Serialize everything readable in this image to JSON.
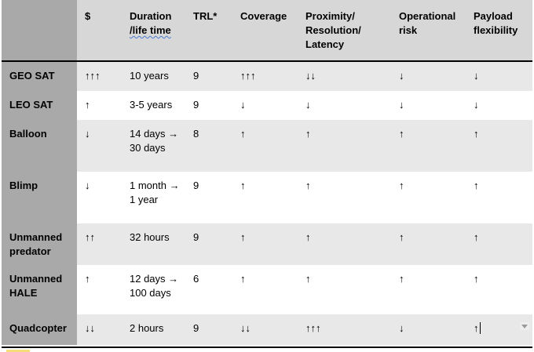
{
  "headers": [
    "",
    "$",
    "Duration /life time",
    "TRL*",
    "Coverage",
    "Proximity/ Resolution/ Latency",
    "Operational risk",
    "Payload flexibility"
  ],
  "header_lines": {
    "duration_1": "Duration",
    "duration_2": "/life time",
    "proximity_1": "Proximity/",
    "proximity_2": "Resolution/",
    "proximity_3": "Latency",
    "operational_1": "Operational",
    "operational_2": "risk",
    "payload_1": "Payload",
    "payload_2": "flexibility"
  },
  "rows": [
    {
      "name": "GEO SAT",
      "cost": "↑↑↑",
      "duration": "10 years",
      "duration2": "",
      "trl": "9",
      "coverage": "↑↑↑",
      "proximity": "↓↓",
      "risk": "↓",
      "payload": "↓"
    },
    {
      "name": "LEO SAT",
      "cost": "↑",
      "duration": "3-5 years",
      "duration2": "",
      "trl": "9",
      "coverage": "↓",
      "proximity": "↓",
      "risk": "↓",
      "payload": "↓"
    },
    {
      "name": "Balloon",
      "cost": "↓",
      "duration": "14 days →",
      "duration2": "30 days",
      "trl": "8",
      "coverage": "↑",
      "proximity": "↑",
      "risk": "↑",
      "payload": "↑"
    },
    {
      "name": "Blimp",
      "cost": "↓",
      "duration": "1 month →",
      "duration2": "1 year",
      "trl": "9",
      "coverage": "↑",
      "proximity": "↑",
      "risk": "↑",
      "payload": "↑"
    },
    {
      "name": "Unmanned",
      "name2": "predator",
      "cost": "↑↑",
      "duration": "32 hours",
      "duration2": "",
      "trl": "9",
      "coverage": "↑",
      "proximity": "↑",
      "risk": "↑",
      "payload": "↑"
    },
    {
      "name": "Unmanned",
      "name2": "HALE",
      "cost": "↑",
      "duration": "12 days →",
      "duration2": "100 days",
      "trl": "6",
      "coverage": "↑",
      "proximity": "↑",
      "risk": "↑",
      "payload": "↑"
    },
    {
      "name": "Quadcopter",
      "cost": "↓↓",
      "duration": "2 hours",
      "duration2": "",
      "trl": "9",
      "coverage": "↓↓",
      "proximity": "↑↑↑",
      "risk": "↓",
      "payload": "↑"
    }
  ]
}
